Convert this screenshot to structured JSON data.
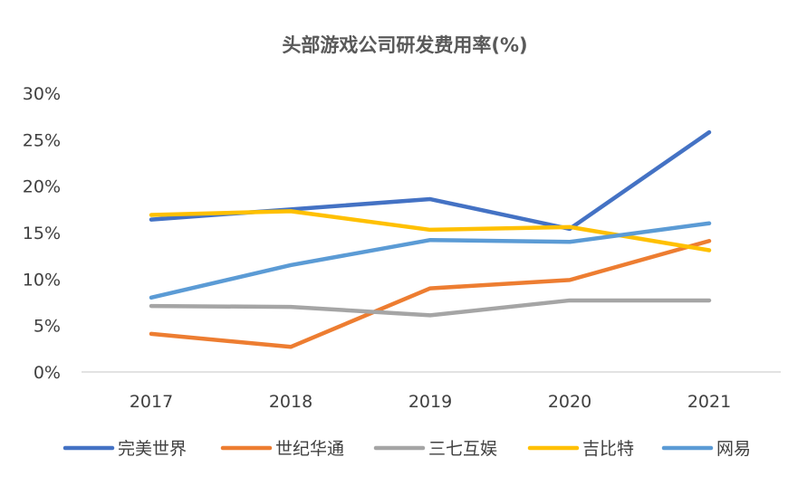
{
  "chart_data": {
    "type": "line",
    "title": "头部游戏公司研发费用率(%)",
    "categories": [
      "2017",
      "2018",
      "2019",
      "2020",
      "2021"
    ],
    "y_ticks": [
      "0%",
      "5%",
      "10%",
      "15%",
      "20%",
      "25%",
      "30%"
    ],
    "ylim": [
      0,
      30
    ],
    "grid": false,
    "legend_position": "bottom",
    "series": [
      {
        "name": "完美世界",
        "color": "#4472C4",
        "values": [
          16.4,
          17.5,
          18.6,
          15.4,
          25.8
        ]
      },
      {
        "name": "世纪华通",
        "color": "#ED7D31",
        "values": [
          4.1,
          2.7,
          9.0,
          9.9,
          14.1
        ]
      },
      {
        "name": "三七互娱",
        "color": "#A5A5A5",
        "values": [
          7.1,
          7.0,
          6.1,
          7.7,
          7.7
        ]
      },
      {
        "name": "吉比特",
        "color": "#FFC000",
        "values": [
          16.9,
          17.3,
          15.3,
          15.6,
          13.1
        ]
      },
      {
        "name": "网易",
        "color": "#5B9BD5",
        "values": [
          8.0,
          11.5,
          14.2,
          14.0,
          16.0
        ]
      }
    ]
  }
}
